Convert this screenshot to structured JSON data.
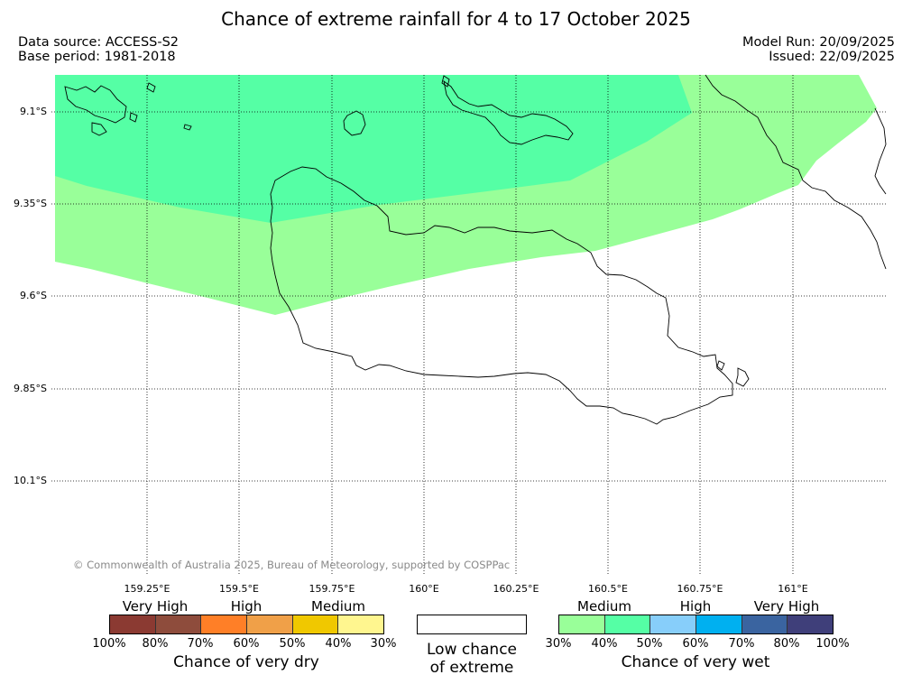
{
  "title": "Chance of extreme rainfall for 4 to 17 October 2025",
  "data_source": "Data source: ACCESS-S2",
  "base_period": "Base period: 1981-2018",
  "model_run": "Model Run: 20/09/2025",
  "issued": "Issued: 22/09/2025",
  "copyright": "© Commonwealth of Australia 2025, Bureau of Meteorology, supported by COSPPac",
  "lat_labels": [
    "9.1°S",
    "9.35°S",
    "9.6°S",
    "9.85°S",
    "10.1°S"
  ],
  "lon_labels": [
    "159.25°E",
    "159.5°E",
    "159.75°E",
    "160°E",
    "160.25°E",
    "160.5°E",
    "160.75°E",
    "161°E"
  ],
  "colors": {
    "wet_medium_30_40": "#99ff99",
    "wet_medium_40_50": "#55ffa5",
    "coastline": "#000000",
    "gridline": "#000000"
  },
  "legend": {
    "dry": {
      "categories": [
        "Very High",
        "High",
        "Medium"
      ],
      "colors": [
        "#8b3a32",
        "#8e4c3c",
        "#ff7f27",
        "#f0a048",
        "#f0c800",
        "#fff68f"
      ],
      "ticks": [
        "100%",
        "80%",
        "70%",
        "60%",
        "50%",
        "40%",
        "30%"
      ],
      "caption": "Chance of very dry"
    },
    "low": {
      "line1": "Low chance",
      "line2": "of extreme"
    },
    "wet": {
      "categories": [
        "Medium",
        "High",
        "Very High"
      ],
      "colors": [
        "#99ff99",
        "#55ffa5",
        "#87cefa",
        "#00b0f0",
        "#3a64a0",
        "#3f3f7a"
      ],
      "ticks": [
        "30%",
        "40%",
        "50%",
        "60%",
        "70%",
        "80%",
        "100%"
      ],
      "caption": "Chance of very wet"
    }
  }
}
